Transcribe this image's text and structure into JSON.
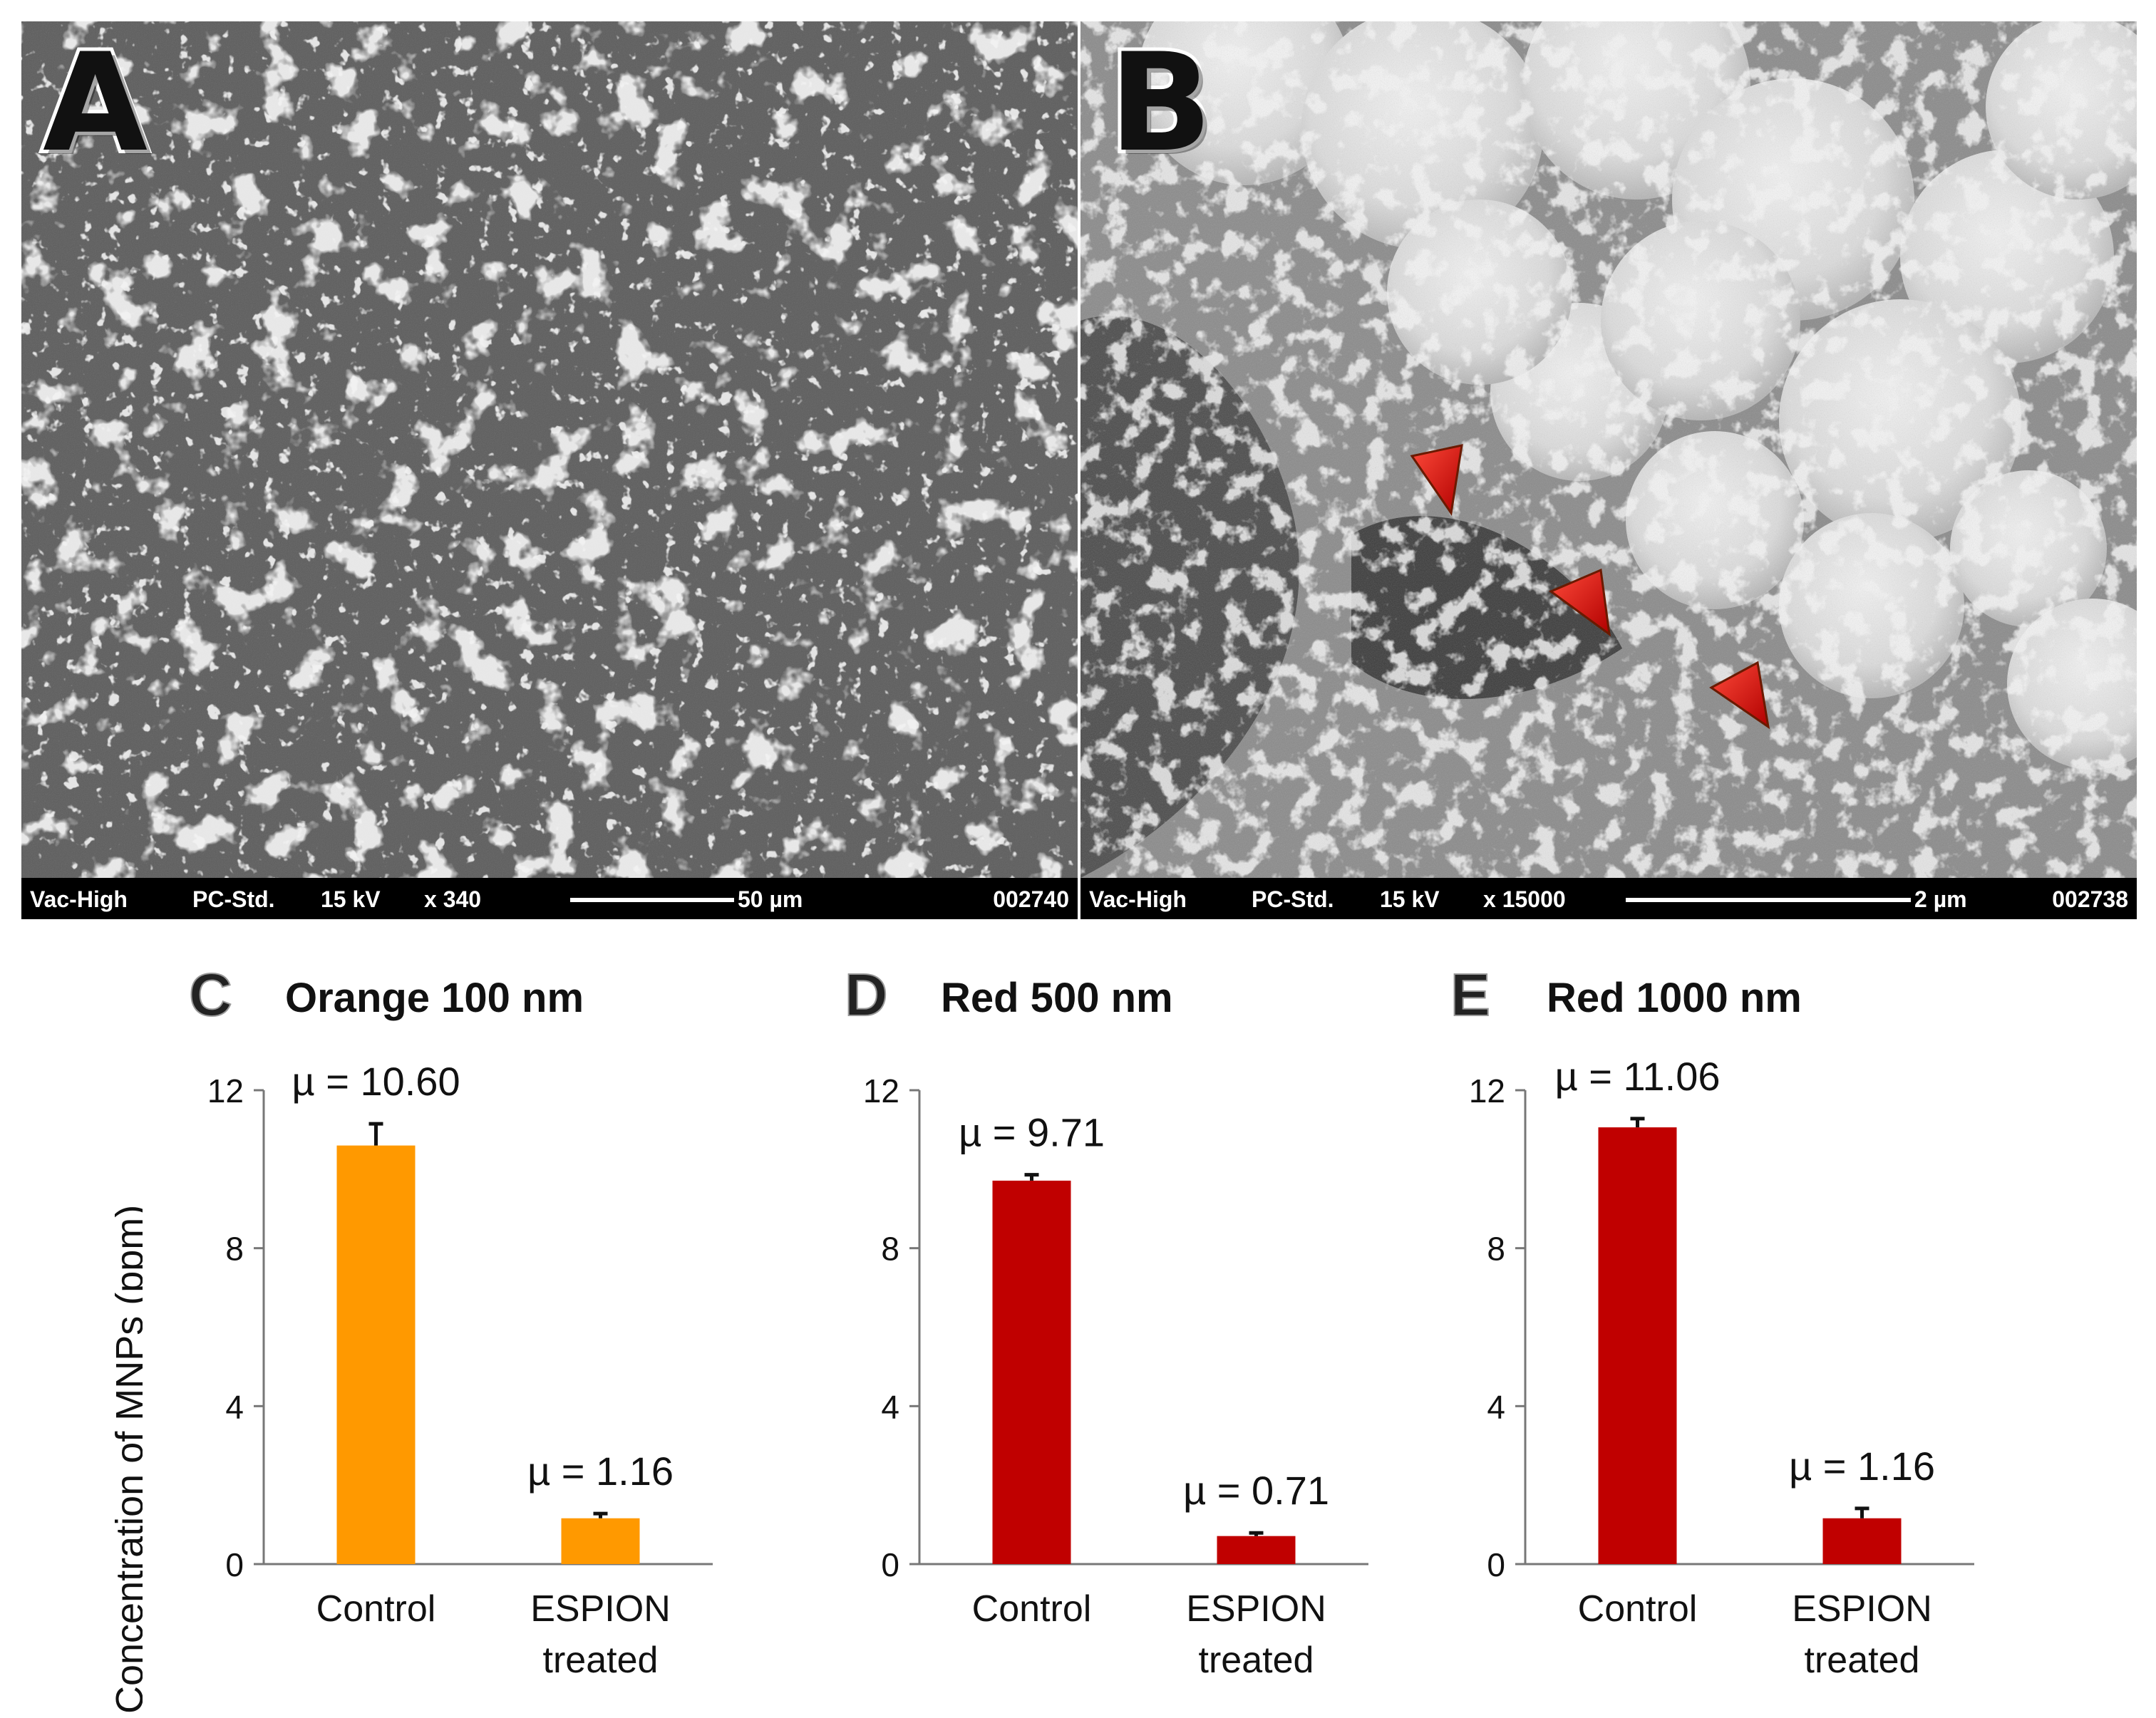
{
  "panels": {
    "a": {
      "letter": "A",
      "info_bar": {
        "vacuum": "Vac-High",
        "mode": "PC-Std.",
        "voltage": "15 kV",
        "magnification": "x 340",
        "scale": "50 µm",
        "image_number": "002740"
      }
    },
    "b": {
      "letter": "B",
      "info_bar": {
        "vacuum": "Vac-High",
        "mode": "PC-Std.",
        "voltage": "15 kV",
        "magnification": "x 15000",
        "scale": "2 µm",
        "image_number": "002738"
      }
    }
  },
  "colors": {
    "orange": "#FF9900",
    "red": "#C00000",
    "arrow": "#D81010"
  },
  "y_axis_title": "Concentration of MNPs (ppm)",
  "chart_data": [
    {
      "type": "bar",
      "panel_letter": "C",
      "title": "Orange 100 nm",
      "categories": [
        "Control",
        [
          "ESPION",
          "treated"
        ]
      ],
      "values": [
        10.6,
        1.16
      ],
      "errors": [
        0.55,
        0.12
      ],
      "data_labels": [
        "µ = 10.60",
        "µ = 1.16"
      ],
      "color": "#FF9900",
      "yticks": [
        0,
        4,
        8,
        12
      ],
      "ylim": [
        0,
        12
      ]
    },
    {
      "type": "bar",
      "panel_letter": "D",
      "title": "Red 500 nm",
      "categories": [
        "Control",
        [
          "ESPION",
          "treated"
        ]
      ],
      "values": [
        9.71,
        0.71
      ],
      "errors": [
        0.15,
        0.08
      ],
      "data_labels": [
        "µ = 9.71",
        "µ = 0.71"
      ],
      "color": "#C00000",
      "yticks": [
        0,
        4,
        8,
        12
      ],
      "ylim": [
        0,
        12
      ]
    },
    {
      "type": "bar",
      "panel_letter": "E",
      "title": "Red  1000 nm",
      "categories": [
        "Control",
        [
          "ESPION",
          "treated"
        ]
      ],
      "values": [
        11.06,
        1.16
      ],
      "errors": [
        0.22,
        0.25
      ],
      "data_labels": [
        "µ = 11.06",
        "µ = 1.16"
      ],
      "color": "#C00000",
      "yticks": [
        0,
        4,
        8,
        12
      ],
      "ylim": [
        0,
        12
      ]
    }
  ]
}
